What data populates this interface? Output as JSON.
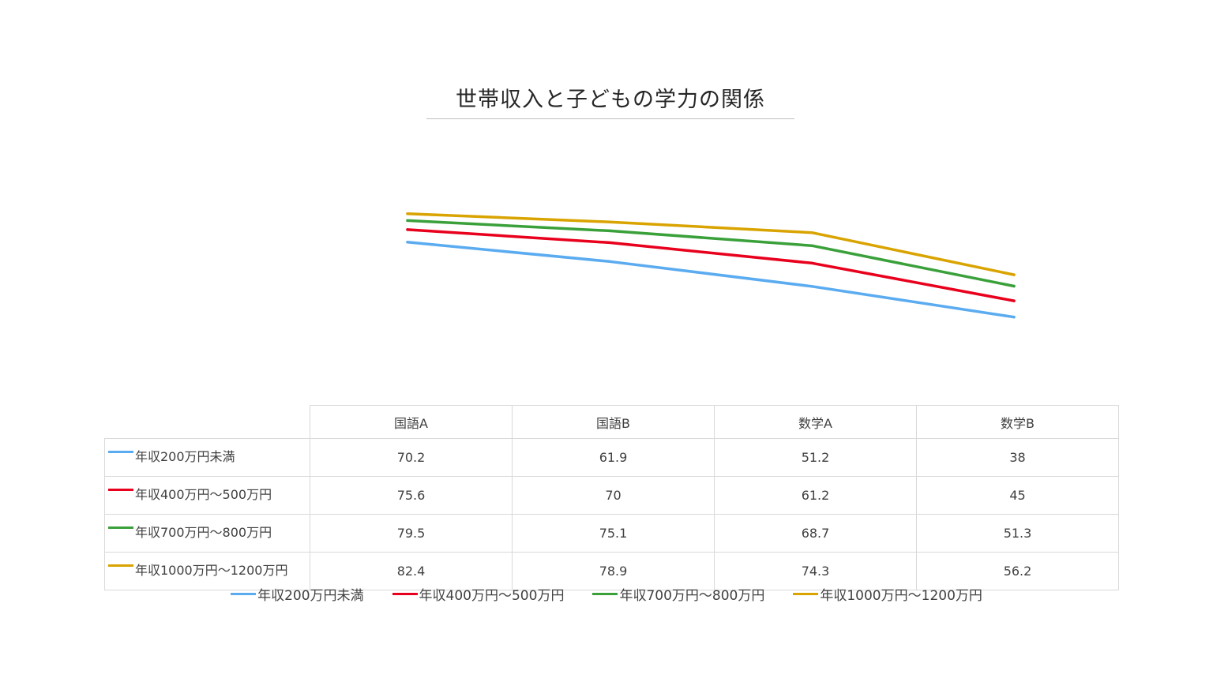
{
  "chart_data": {
    "type": "line",
    "title": "世帯収入と子どもの学力の関係",
    "categories": [
      "国語A",
      "国語B",
      "数学A",
      "数学B"
    ],
    "series": [
      {
        "name": "年収200万円未満",
        "color": "#5aabf0",
        "values": [
          70.2,
          61.9,
          51.2,
          38
        ]
      },
      {
        "name": "年収400万円～500万円",
        "color": "#e8001c",
        "values": [
          75.6,
          70,
          61.2,
          45
        ]
      },
      {
        "name": "年収700万円～800万円",
        "color": "#3aa03a",
        "values": [
          79.5,
          75.1,
          68.7,
          51.3
        ]
      },
      {
        "name": "年収1000万円～1200万円",
        "color": "#d9a300",
        "values": [
          82.4,
          78.9,
          74.3,
          56.2
        ]
      }
    ],
    "value_labels": [
      [
        "70.2",
        "61.9",
        "51.2",
        "38"
      ],
      [
        "75.6",
        "70",
        "61.2",
        "45"
      ],
      [
        "79.5",
        "75.1",
        "68.7",
        "51.3"
      ],
      [
        "82.4",
        "78.9",
        "74.3",
        "56.2"
      ]
    ],
    "xlabel": "",
    "ylabel": "",
    "grid": false,
    "legend": "bottom",
    "data_table": true
  }
}
